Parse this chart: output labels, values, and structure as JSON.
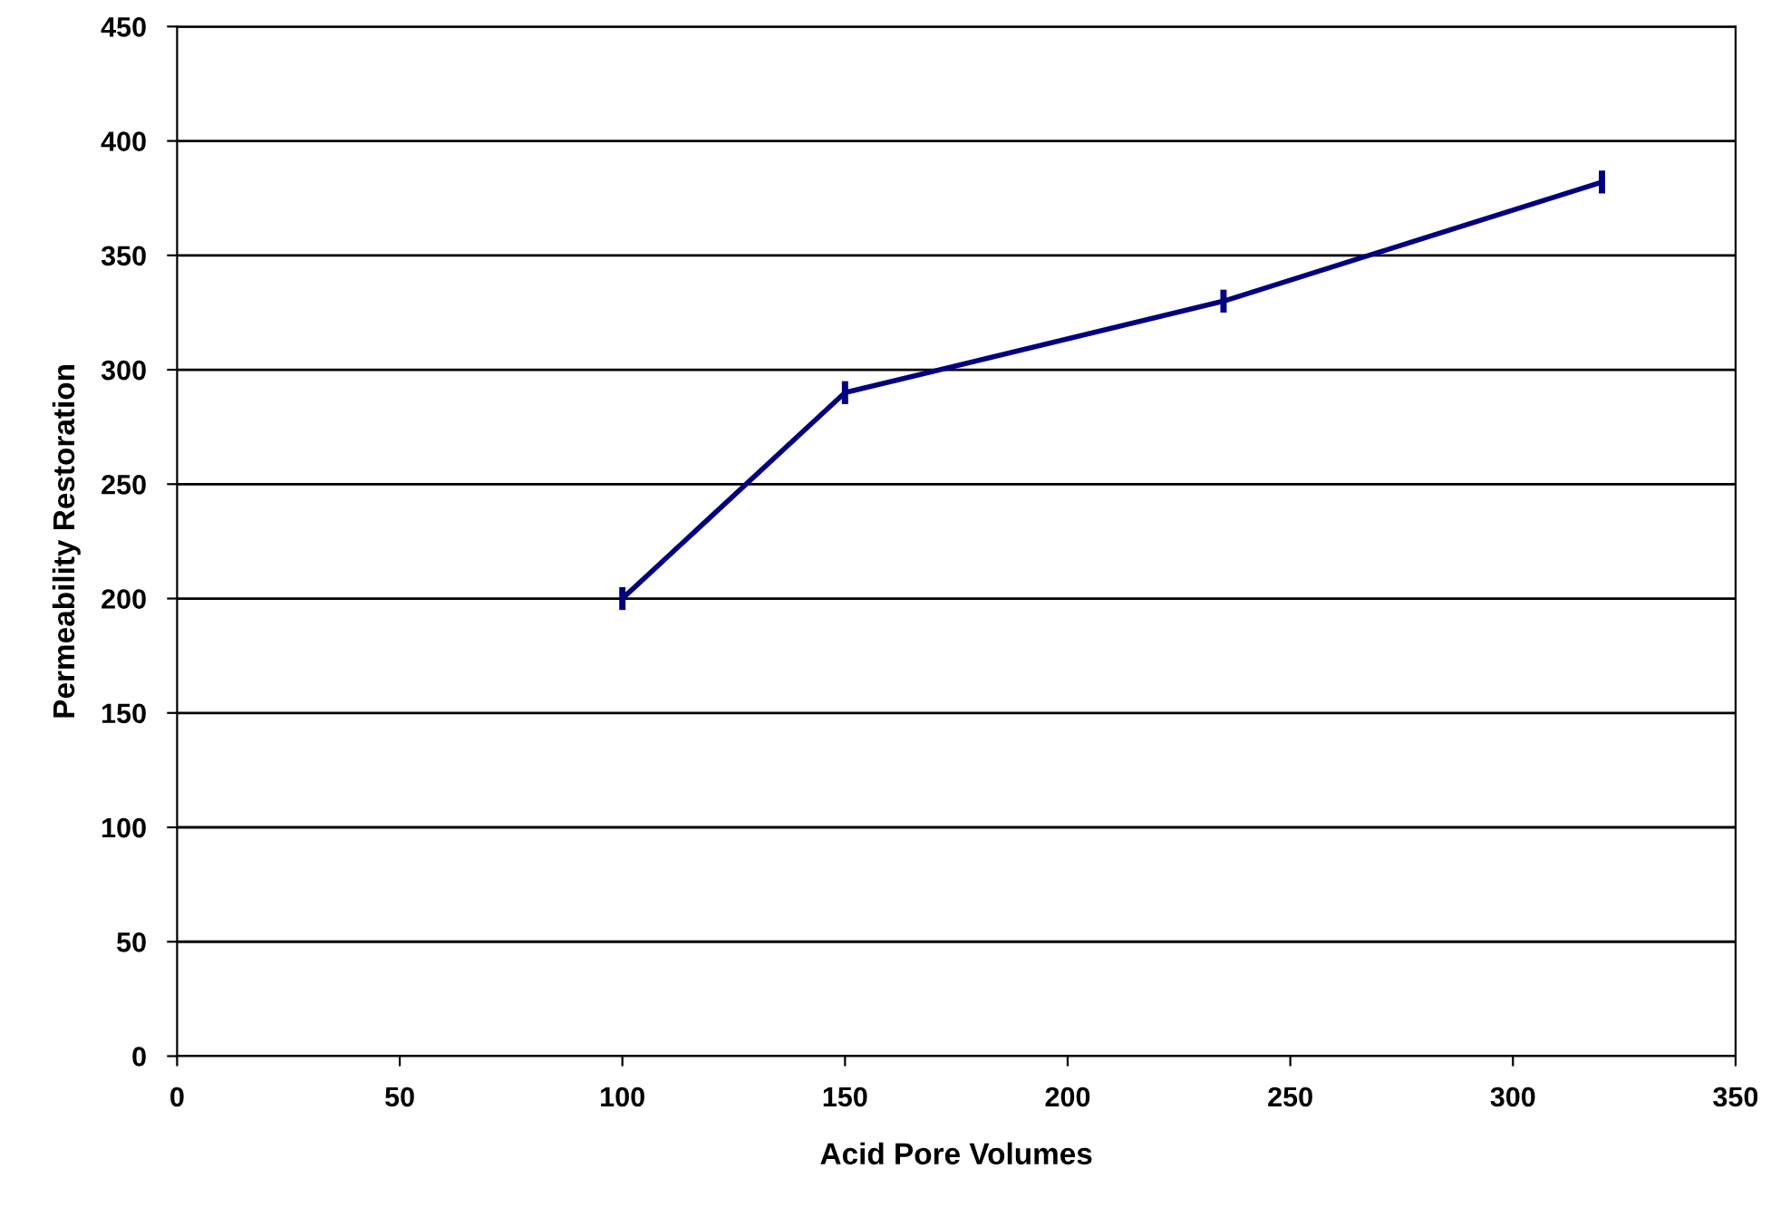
{
  "chart_data": {
    "type": "line",
    "xlabel": "Acid Pore Volumes",
    "ylabel": "Permeability Restoration",
    "x": [
      100,
      150,
      235,
      320
    ],
    "series": [
      {
        "color": "#000080",
        "values": [
          200,
          290,
          330,
          382
        ],
        "errors": [
          5,
          5,
          5,
          5
        ]
      }
    ],
    "xlim": [
      0,
      350
    ],
    "xticks": [
      0,
      50,
      100,
      150,
      200,
      250,
      300,
      350
    ],
    "ylim": [
      0,
      450
    ],
    "yticks": [
      0,
      50,
      100,
      150,
      200,
      250,
      300,
      350,
      400,
      450
    ],
    "grid": "y",
    "line_style": "solid"
  }
}
